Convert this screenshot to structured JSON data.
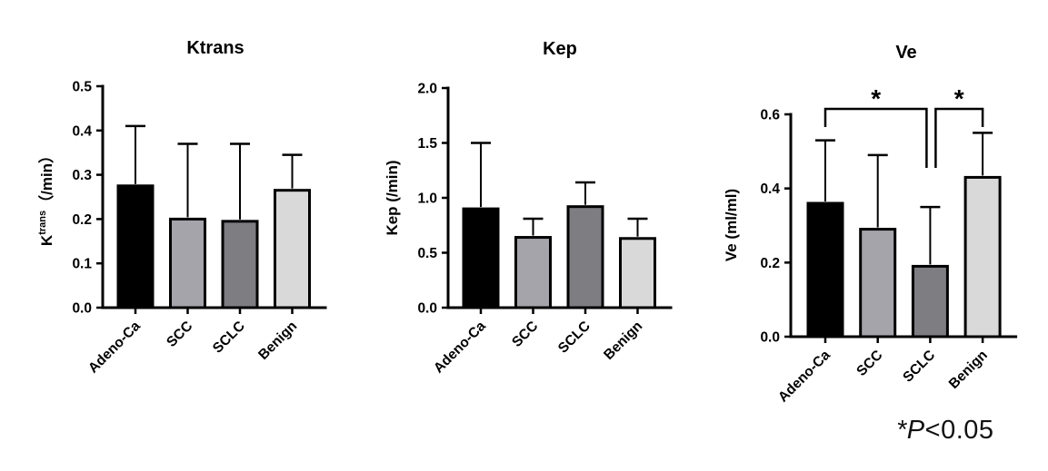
{
  "figure": {
    "background": "#ffffff",
    "bar_colors": [
      "#000000",
      "#a5a4aa",
      "#7e7d82",
      "#d9d9d9"
    ],
    "axis_color": "#000000"
  },
  "footnote": {
    "star": "*",
    "p_symbol": "P",
    "rest": "<0.05"
  },
  "chart_data": [
    {
      "type": "bar",
      "title": "Ktrans",
      "ylabel_parts": {
        "base": "K",
        "sup": "trans",
        "unit": "（/min）"
      },
      "categories": [
        "Adeno-Ca",
        "SCC",
        "SCLC",
        "Benign"
      ],
      "values": [
        0.275,
        0.2,
        0.195,
        0.265
      ],
      "errors_upper": [
        0.135,
        0.17,
        0.175,
        0.08
      ],
      "ylim": [
        0,
        0.5
      ],
      "yticks": [
        0,
        0.1,
        0.2,
        0.3,
        0.4,
        0.5
      ],
      "ytick_labels": [
        "0.0",
        "0.1",
        "0.2",
        "0.3",
        "0.4",
        "0.5"
      ],
      "grid": false,
      "legend": "none"
    },
    {
      "type": "bar",
      "title": "Kep",
      "ylabel": "Kep (/min)",
      "categories": [
        "Adeno-Ca",
        "SCC",
        "SCLC",
        "Benign"
      ],
      "values": [
        0.9,
        0.64,
        0.92,
        0.63
      ],
      "errors_upper": [
        0.6,
        0.17,
        0.22,
        0.18
      ],
      "ylim": [
        0,
        2.0
      ],
      "yticks": [
        0,
        0.5,
        1.0,
        1.5,
        2.0
      ],
      "ytick_labels": [
        "0.0",
        "0.5",
        "1.0",
        "1.5",
        "2.0"
      ],
      "grid": false,
      "legend": "none"
    },
    {
      "type": "bar",
      "title": "Ve",
      "ylabel": "Ve (ml/ml)",
      "categories": [
        "Adeno-Ca",
        "SCC",
        "SCLC",
        "Benign"
      ],
      "values": [
        0.36,
        0.29,
        0.19,
        0.43
      ],
      "errors_upper": [
        0.17,
        0.2,
        0.16,
        0.12
      ],
      "ylim": [
        0,
        0.6
      ],
      "yticks": [
        0,
        0.2,
        0.4,
        0.6
      ],
      "ytick_labels": [
        "0.0",
        "0.2",
        "0.4",
        "0.6"
      ],
      "grid": false,
      "legend": "none",
      "significance": [
        {
          "from": "Adeno-Ca",
          "to": "SCLC",
          "label": "*"
        },
        {
          "from": "SCLC",
          "to": "Benign",
          "label": "*"
        }
      ]
    }
  ]
}
